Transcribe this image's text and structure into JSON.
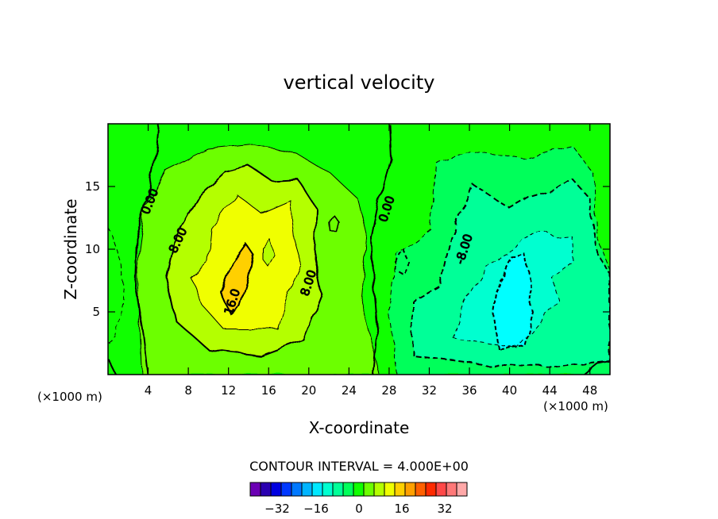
{
  "chart_data": {
    "type": "heatmap",
    "title": "vertical velocity",
    "xlabel": "X-coordinate",
    "ylabel": "Z-coordinate",
    "x_unit_left": "(×1000 m)",
    "x_unit_right": "(×1000 m)",
    "xlim": [
      0,
      50
    ],
    "ylim": [
      0,
      20
    ],
    "x_ticks": [
      4,
      8,
      12,
      16,
      20,
      24,
      28,
      32,
      36,
      40,
      44,
      48
    ],
    "y_ticks": [
      5,
      10,
      15
    ],
    "contour_interval_text": "CONTOUR INTERVAL = 4.000E+00",
    "contour_labels": [
      {
        "text": "0.00",
        "x": 4.2,
        "y": 13.8,
        "angle": -68
      },
      {
        "text": "8.00",
        "x": 7.0,
        "y": 10.7,
        "angle": -65
      },
      {
        "text": "16.0",
        "x": 12.4,
        "y": 5.8,
        "angle": -72
      },
      {
        "text": "8.00",
        "x": 20.0,
        "y": 7.3,
        "angle": -72
      },
      {
        "text": "0.00",
        "x": 27.8,
        "y": 13.2,
        "angle": -72
      },
      {
        "text": "-8.00",
        "x": 35.5,
        "y": 10.0,
        "angle": -72
      }
    ],
    "colorbar": {
      "colors": [
        "#6b00b4",
        "#2a00b0",
        "#0000e0",
        "#0038ff",
        "#0078ff",
        "#00b4ff",
        "#00e8ff",
        "#00ffd0",
        "#00ff98",
        "#00ff5a",
        "#10ff00",
        "#6cff00",
        "#b4ff00",
        "#f0ff00",
        "#ffd000",
        "#ffa000",
        "#ff6000",
        "#ff2a00",
        "#ff4848",
        "#ff7878",
        "#ffa8a8"
      ],
      "tick_labels": [
        "-32",
        "-16",
        "0",
        "16",
        "32"
      ]
    }
  }
}
